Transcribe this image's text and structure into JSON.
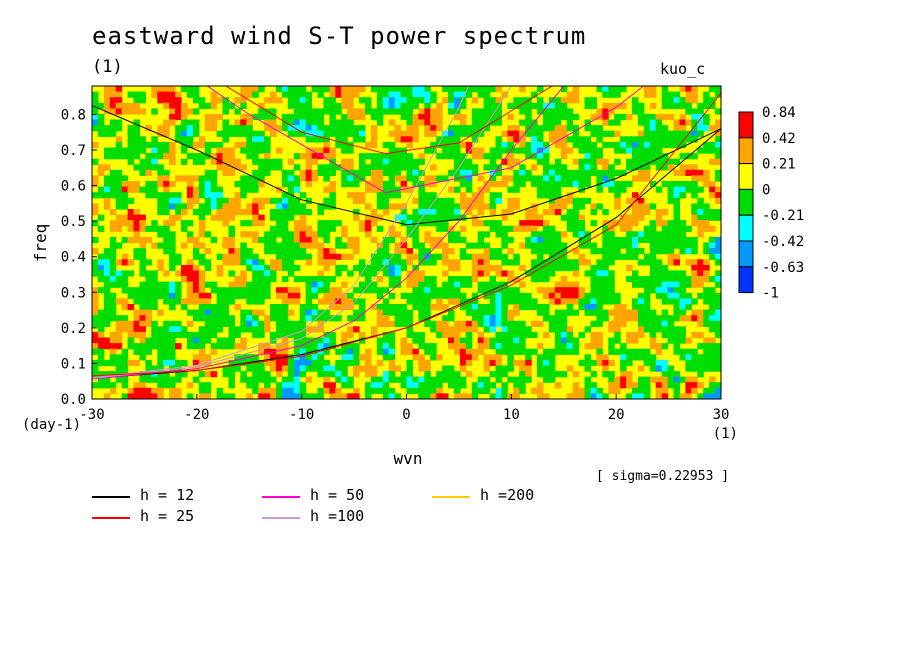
{
  "title": "eastward wind S-T power spectrum",
  "subtitle": "(1)",
  "model_label": "kuo_c",
  "sigma_note": "[ sigma=0.22953 ]",
  "chart_data": {
    "type": "heatmap",
    "xlabel": "wvn",
    "ylabel": "freq",
    "x_unit": "(1)",
    "y_unit": "(day-1)",
    "xlim": [
      -30,
      30
    ],
    "ylim": [
      0.0,
      0.88
    ],
    "x_ticks": [
      "-30",
      "-20",
      "-10",
      "0",
      "10",
      "20",
      "30"
    ],
    "y_ticks": [
      "0.0",
      "0.1",
      "0.2",
      "0.3",
      "0.4",
      "0.5",
      "0.6",
      "0.7",
      "0.8"
    ],
    "colorbar": {
      "levels": [
        "0.84",
        "0.42",
        "0.21",
        "0",
        "-0.21",
        "-0.42",
        "-0.63",
        "-1"
      ],
      "colors": [
        "#ff0000",
        "#ffa500",
        "#ffff00",
        "#00dd00",
        "#00ffff",
        "#0099ff",
        "#0033ff"
      ]
    },
    "dispersion_curves": [
      {
        "name": "h = 12",
        "color": "#000000"
      },
      {
        "name": "h = 25",
        "color": "#ff0000"
      },
      {
        "name": "h = 50",
        "color": "#ff00cc"
      },
      {
        "name": "h =100",
        "color": "#cc99cc"
      },
      {
        "name": "h =200",
        "color": "#ffcc00"
      }
    ]
  }
}
